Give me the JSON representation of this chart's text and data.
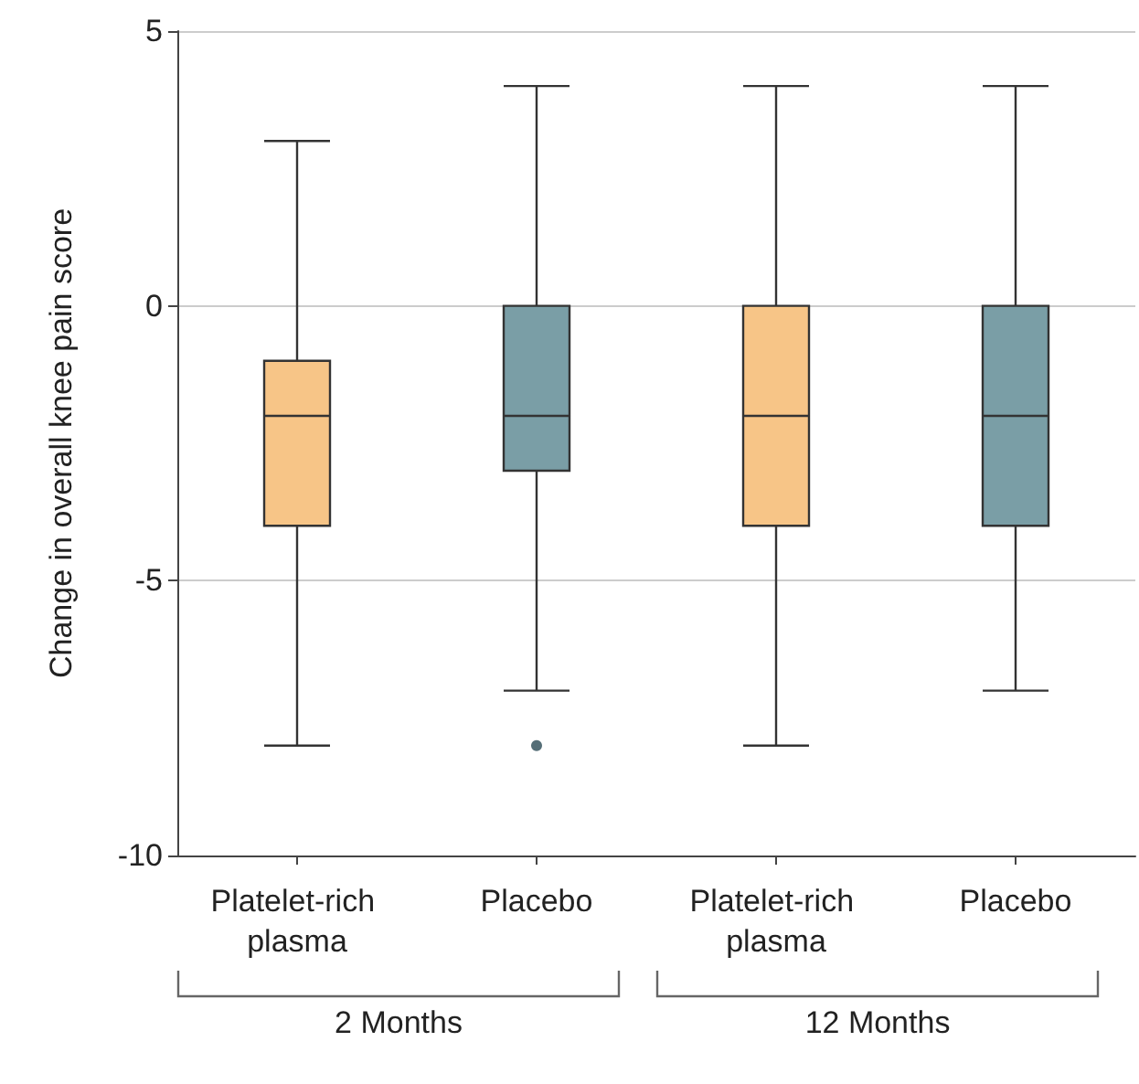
{
  "chart_data": {
    "type": "box",
    "ylabel": "Change in overall knee pain score",
    "categories": [
      "Platelet-rich plasma",
      "Placebo",
      "Platelet-rich plasma",
      "Placebo"
    ],
    "colors": [
      "#f7c587",
      "#7a9ea6",
      "#f7c587",
      "#7a9ea6"
    ],
    "boxes": [
      {
        "low": -8,
        "q1": -4,
        "median": -2,
        "q3": -1,
        "high": 3
      },
      {
        "low": -7,
        "q1": -3,
        "median": -2,
        "q3": 0,
        "high": 4,
        "outliers": [
          -8
        ]
      },
      {
        "low": -8,
        "q1": -4,
        "median": -2,
        "q3": 0,
        "high": 4
      },
      {
        "low": -7,
        "q1": -4,
        "median": -2,
        "q3": 0,
        "high": 4
      }
    ],
    "ylim": [
      -10,
      5
    ],
    "yticks": [
      -10,
      -5,
      0,
      5
    ],
    "grid": "y",
    "annotations": [
      "2 Months",
      "12 Months"
    ]
  }
}
